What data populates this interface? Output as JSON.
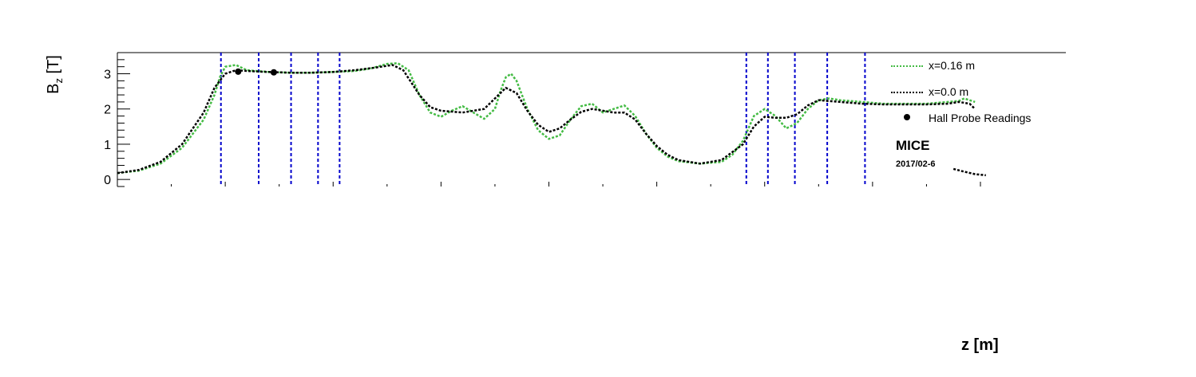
{
  "chart_data": {
    "type": "line",
    "title": "",
    "xlabel": "z [m]",
    "ylabel_main": "B",
    "ylabel_sub": "z",
    "ylabel_unit": " [T]",
    "ylim": [
      -0.2,
      3.6
    ],
    "xlim": [
      0,
      8
    ],
    "yticks": [
      0,
      1,
      2,
      3
    ],
    "series": [
      {
        "name": "x=0.16 m",
        "color": "#44bb44",
        "style": "dotted",
        "points": [
          [
            0.0,
            0.18
          ],
          [
            0.2,
            0.25
          ],
          [
            0.4,
            0.45
          ],
          [
            0.6,
            0.9
          ],
          [
            0.8,
            1.7
          ],
          [
            0.9,
            2.4
          ],
          [
            0.95,
            2.9
          ],
          [
            1.0,
            3.2
          ],
          [
            1.1,
            3.25
          ],
          [
            1.2,
            3.1
          ],
          [
            1.4,
            3.05
          ],
          [
            1.6,
            3.03
          ],
          [
            1.8,
            3.03
          ],
          [
            2.0,
            3.05
          ],
          [
            2.2,
            3.08
          ],
          [
            2.35,
            3.15
          ],
          [
            2.5,
            3.28
          ],
          [
            2.6,
            3.3
          ],
          [
            2.7,
            3.1
          ],
          [
            2.8,
            2.4
          ],
          [
            2.9,
            1.9
          ],
          [
            3.0,
            1.78
          ],
          [
            3.1,
            1.95
          ],
          [
            3.2,
            2.08
          ],
          [
            3.3,
            1.9
          ],
          [
            3.4,
            1.72
          ],
          [
            3.5,
            2.0
          ],
          [
            3.55,
            2.5
          ],
          [
            3.6,
            2.9
          ],
          [
            3.65,
            3.0
          ],
          [
            3.7,
            2.8
          ],
          [
            3.8,
            2.0
          ],
          [
            3.9,
            1.4
          ],
          [
            4.0,
            1.15
          ],
          [
            4.1,
            1.25
          ],
          [
            4.2,
            1.7
          ],
          [
            4.3,
            2.08
          ],
          [
            4.4,
            2.15
          ],
          [
            4.5,
            1.9
          ],
          [
            4.6,
            2.0
          ],
          [
            4.7,
            2.1
          ],
          [
            4.8,
            1.8
          ],
          [
            4.9,
            1.3
          ],
          [
            5.0,
            0.9
          ],
          [
            5.1,
            0.65
          ],
          [
            5.2,
            0.52
          ],
          [
            5.4,
            0.45
          ],
          [
            5.6,
            0.5
          ],
          [
            5.7,
            0.7
          ],
          [
            5.8,
            1.1
          ],
          [
            5.9,
            1.8
          ],
          [
            6.0,
            2.0
          ],
          [
            6.1,
            1.8
          ],
          [
            6.2,
            1.45
          ],
          [
            6.3,
            1.6
          ],
          [
            6.4,
            2.0
          ],
          [
            6.5,
            2.25
          ],
          [
            6.6,
            2.3
          ],
          [
            6.7,
            2.25
          ],
          [
            6.9,
            2.2
          ],
          [
            7.1,
            2.15
          ],
          [
            7.3,
            2.15
          ],
          [
            7.5,
            2.15
          ],
          [
            7.7,
            2.2
          ],
          [
            7.8,
            2.23
          ],
          [
            7.85,
            2.3
          ],
          [
            7.95,
            2.2
          ]
        ]
      },
      {
        "name": "x=0.0 m",
        "color": "#000000",
        "style": "dotted",
        "points": [
          [
            0.0,
            0.18
          ],
          [
            0.2,
            0.27
          ],
          [
            0.4,
            0.5
          ],
          [
            0.6,
            1.0
          ],
          [
            0.8,
            1.9
          ],
          [
            0.9,
            2.6
          ],
          [
            1.0,
            3.0
          ],
          [
            1.1,
            3.1
          ],
          [
            1.2,
            3.08
          ],
          [
            1.4,
            3.05
          ],
          [
            1.6,
            3.03
          ],
          [
            1.8,
            3.03
          ],
          [
            2.0,
            3.05
          ],
          [
            2.2,
            3.1
          ],
          [
            2.4,
            3.18
          ],
          [
            2.55,
            3.25
          ],
          [
            2.65,
            3.1
          ],
          [
            2.8,
            2.4
          ],
          [
            2.9,
            2.05
          ],
          [
            3.0,
            1.95
          ],
          [
            3.2,
            1.9
          ],
          [
            3.4,
            2.0
          ],
          [
            3.5,
            2.3
          ],
          [
            3.6,
            2.6
          ],
          [
            3.7,
            2.45
          ],
          [
            3.8,
            1.95
          ],
          [
            3.9,
            1.55
          ],
          [
            4.0,
            1.35
          ],
          [
            4.1,
            1.45
          ],
          [
            4.2,
            1.7
          ],
          [
            4.3,
            1.92
          ],
          [
            4.4,
            2.0
          ],
          [
            4.5,
            1.95
          ],
          [
            4.6,
            1.9
          ],
          [
            4.7,
            1.9
          ],
          [
            4.8,
            1.7
          ],
          [
            4.9,
            1.3
          ],
          [
            5.0,
            0.95
          ],
          [
            5.1,
            0.7
          ],
          [
            5.2,
            0.55
          ],
          [
            5.4,
            0.45
          ],
          [
            5.6,
            0.55
          ],
          [
            5.8,
            1.0
          ],
          [
            5.9,
            1.5
          ],
          [
            6.0,
            1.78
          ],
          [
            6.1,
            1.75
          ],
          [
            6.2,
            1.75
          ],
          [
            6.3,
            1.85
          ],
          [
            6.4,
            2.1
          ],
          [
            6.5,
            2.25
          ],
          [
            6.7,
            2.2
          ],
          [
            6.9,
            2.15
          ],
          [
            7.1,
            2.13
          ],
          [
            7.3,
            2.13
          ],
          [
            7.5,
            2.13
          ],
          [
            7.7,
            2.15
          ],
          [
            7.8,
            2.2
          ],
          [
            7.9,
            2.15
          ],
          [
            7.95,
            2.0
          ]
        ],
        "tail_points": [
          [
            7.75,
            0.3
          ],
          [
            7.85,
            0.22
          ],
          [
            7.95,
            0.15
          ],
          [
            8.05,
            0.12
          ]
        ]
      }
    ],
    "hall_probe_readings": {
      "name": "Hall Probe Readings",
      "points": [
        [
          1.12,
          3.06
        ],
        [
          1.45,
          3.04
        ]
      ]
    },
    "coil_boundaries_z": [
      0.96,
      1.31,
      1.61,
      1.86,
      2.06,
      5.83,
      6.03,
      6.28,
      6.58,
      6.93
    ],
    "legend_position": "top-right",
    "grid": false
  },
  "legend": {
    "items": [
      {
        "label": "x=0.16 m"
      },
      {
        "label": "x=0.0 m"
      },
      {
        "label": "Hall Probe Readings"
      }
    ]
  },
  "annotation": {
    "experiment": "MICE",
    "date": "2017/02-6"
  },
  "colors": {
    "green": "#44bb44",
    "black": "#000000",
    "boundary": "#0000cc"
  }
}
